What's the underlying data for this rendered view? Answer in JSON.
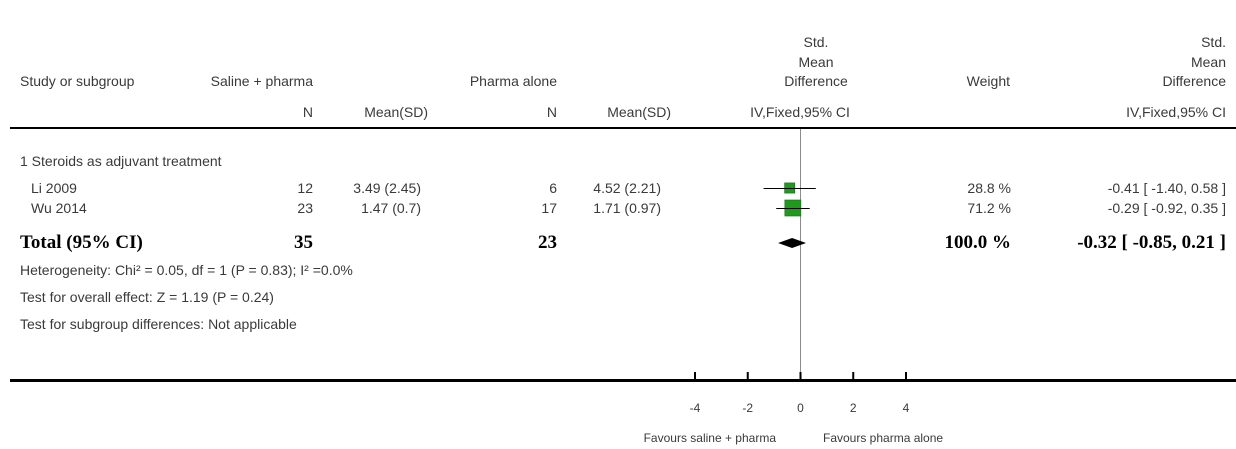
{
  "header": {
    "study_col": "Study or subgroup",
    "exp_group": "Saline + pharma",
    "ctrl_group": "Pharma alone",
    "plot_col": [
      "Std.",
      "Mean",
      "Difference"
    ],
    "weight_col": "Weight",
    "effect_col": [
      "Std.",
      "Mean",
      "Difference"
    ],
    "exp_n": "N",
    "exp_mean_sd": "Mean(SD)",
    "ctrl_n": "N",
    "ctrl_mean_sd": "Mean(SD)",
    "plot_method": "IV,Fixed,95% CI",
    "effect_method": "IV,Fixed,95% CI"
  },
  "chart_data": {
    "type": "scatter",
    "subgroup": "1 Steroids as adjuvant treatment",
    "studies": [
      {
        "name": "Li 2009",
        "exp_n": "12",
        "exp_mean_sd": "3.49 (2.45)",
        "ctrl_n": "6",
        "ctrl_mean_sd": "4.52 (2.21)",
        "weight": "28.8 %",
        "effect": "-0.41 [ -1.40, 0.58 ]",
        "smd": -0.41,
        "ci": [
          -1.4,
          0.58
        ]
      },
      {
        "name": "Wu 2014",
        "exp_n": "23",
        "exp_mean_sd": "1.47 (0.7)",
        "ctrl_n": "17",
        "ctrl_mean_sd": "1.71 (0.97)",
        "weight": "71.2 %",
        "effect": "-0.29 [ -0.92, 0.35 ]",
        "smd": -0.29,
        "ci": [
          -0.92,
          0.35
        ]
      }
    ],
    "total": {
      "name": "Total (95% CI)",
      "exp_n": "35",
      "ctrl_n": "23",
      "weight": "100.0 %",
      "effect": "-0.32 [ -0.85, 0.21 ]",
      "smd": -0.32,
      "ci": [
        -0.85,
        0.21
      ]
    },
    "heterogeneity": "Heterogeneity: Chi² = 0.05, df = 1 (P = 0.83); I² =0.0%",
    "overall_effect": "Test for overall effect: Z = 1.19 (P = 0.24)",
    "subgroup_differences": "Test for subgroup differences: Not applicable",
    "xlim": [
      -4,
      4
    ],
    "x_ticks": [
      -4,
      -2,
      0,
      2,
      4
    ],
    "favours_left": "Favours saline + pharma",
    "favours_right": "Favours pharma alone",
    "colors": {
      "study_marker": "#1f9a1f",
      "pooled_marker": "#000000",
      "null_line": "#8c8c8c"
    }
  }
}
